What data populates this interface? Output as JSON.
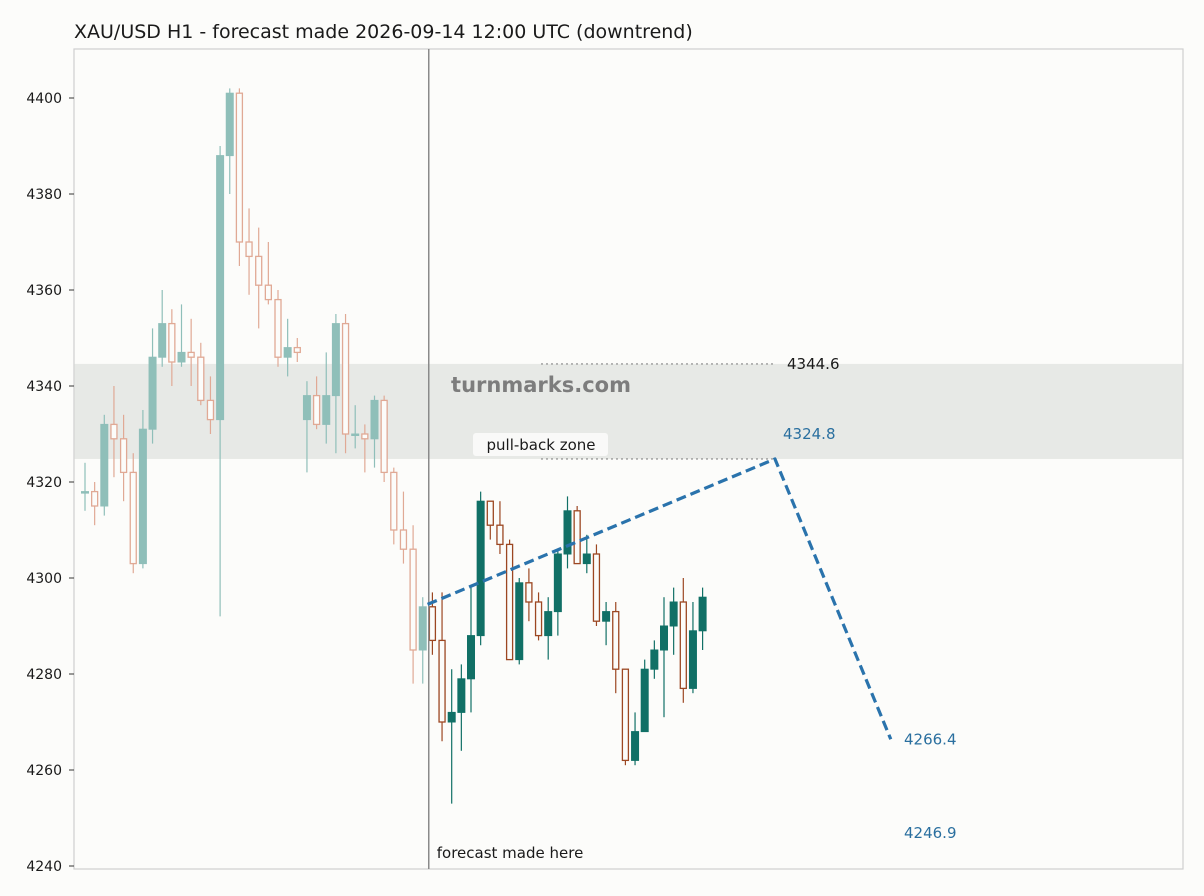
{
  "chart_data": {
    "type": "candlestick",
    "title": "XAU/USD H1 - forecast made 2026-09-14 12:00 UTC (downtrend)",
    "xlabel": "",
    "ylabel": "",
    "ylim": [
      4240,
      4410
    ],
    "y_ticks": [
      "4240",
      "4260",
      "4280",
      "4300",
      "4320",
      "4340",
      "4360",
      "4380",
      "4400"
    ],
    "grid": false,
    "history_candles": [
      {
        "o": 4318,
        "h": 4324,
        "l": 4314,
        "c": 4318
      },
      {
        "o": 4318,
        "h": 4320,
        "l": 4311,
        "c": 4315
      },
      {
        "o": 4315,
        "h": 4334,
        "l": 4313,
        "c": 4332
      },
      {
        "o": 4332,
        "h": 4340,
        "l": 4321,
        "c": 4329
      },
      {
        "o": 4329,
        "h": 4334,
        "l": 4316,
        "c": 4322
      },
      {
        "o": 4322,
        "h": 4326,
        "l": 4301,
        "c": 4303
      },
      {
        "o": 4303,
        "h": 4335,
        "l": 4302,
        "c": 4331
      },
      {
        "o": 4331,
        "h": 4352,
        "l": 4328,
        "c": 4346
      },
      {
        "o": 4346,
        "h": 4360,
        "l": 4344,
        "c": 4353
      },
      {
        "o": 4353,
        "h": 4356,
        "l": 4340,
        "c": 4345
      },
      {
        "o": 4345,
        "h": 4357,
        "l": 4344,
        "c": 4347
      },
      {
        "o": 4347,
        "h": 4354,
        "l": 4340,
        "c": 4346
      },
      {
        "o": 4346,
        "h": 4349,
        "l": 4336,
        "c": 4337
      },
      {
        "o": 4337,
        "h": 4342,
        "l": 4330,
        "c": 4333
      },
      {
        "o": 4333,
        "h": 4390,
        "l": 4292,
        "c": 4388
      },
      {
        "o": 4388,
        "h": 4402,
        "l": 4380,
        "c": 4401
      },
      {
        "o": 4401,
        "h": 4402,
        "l": 4365,
        "c": 4370
      },
      {
        "o": 4370,
        "h": 4377,
        "l": 4359,
        "c": 4367
      },
      {
        "o": 4367,
        "h": 4373,
        "l": 4352,
        "c": 4361
      },
      {
        "o": 4361,
        "h": 4370,
        "l": 4357,
        "c": 4358
      },
      {
        "o": 4358,
        "h": 4360,
        "l": 4344,
        "c": 4346
      },
      {
        "o": 4346,
        "h": 4354,
        "l": 4342,
        "c": 4348
      },
      {
        "o": 4348,
        "h": 4350,
        "l": 4345,
        "c": 4347
      },
      {
        "o": 4333,
        "h": 4341,
        "l": 4322,
        "c": 4338
      },
      {
        "o": 4338,
        "h": 4342,
        "l": 4331,
        "c": 4332
      },
      {
        "o": 4332,
        "h": 4347,
        "l": 4328,
        "c": 4338
      },
      {
        "o": 4338,
        "h": 4355,
        "l": 4326,
        "c": 4353
      },
      {
        "o": 4353,
        "h": 4355,
        "l": 4326,
        "c": 4330
      },
      {
        "o": 4330,
        "h": 4336,
        "l": 4327,
        "c": 4330
      },
      {
        "o": 4330,
        "h": 4332,
        "l": 4322,
        "c": 4329
      },
      {
        "o": 4329,
        "h": 4338,
        "l": 4323,
        "c": 4337
      },
      {
        "o": 4337,
        "h": 4338,
        "l": 4320,
        "c": 4322
      },
      {
        "o": 4322,
        "h": 4323,
        "l": 4307,
        "c": 4310
      },
      {
        "o": 4310,
        "h": 4318,
        "l": 4303,
        "c": 4306
      },
      {
        "o": 4306,
        "h": 4311,
        "l": 4278,
        "c": 4285
      },
      {
        "o": 4285,
        "h": 4296,
        "l": 4278,
        "c": 4294
      }
    ],
    "after_forecast_candles": [
      {
        "o": 4294,
        "h": 4297,
        "l": 4284,
        "c": 4287
      },
      {
        "o": 4287,
        "h": 4297,
        "l": 4266,
        "c": 4270
      },
      {
        "o": 4270,
        "h": 4281,
        "l": 4253,
        "c": 4272
      },
      {
        "o": 4272,
        "h": 4282,
        "l": 4264,
        "c": 4279
      },
      {
        "o": 4279,
        "h": 4298,
        "l": 4272,
        "c": 4288
      },
      {
        "o": 4288,
        "h": 4318,
        "l": 4286,
        "c": 4316
      },
      {
        "o": 4316,
        "h": 4316,
        "l": 4308,
        "c": 4311
      },
      {
        "o": 4311,
        "h": 4316,
        "l": 4305,
        "c": 4307
      },
      {
        "o": 4307,
        "h": 4308,
        "l": 4283,
        "c": 4283
      },
      {
        "o": 4283,
        "h": 4300,
        "l": 4282,
        "c": 4299
      },
      {
        "o": 4299,
        "h": 4302,
        "l": 4291,
        "c": 4295
      },
      {
        "o": 4295,
        "h": 4297,
        "l": 4287,
        "c": 4288
      },
      {
        "o": 4288,
        "h": 4296,
        "l": 4283,
        "c": 4293
      },
      {
        "o": 4293,
        "h": 4306,
        "l": 4288,
        "c": 4305
      },
      {
        "o": 4305,
        "h": 4317,
        "l": 4302,
        "c": 4314
      },
      {
        "o": 4314,
        "h": 4315,
        "l": 4303,
        "c": 4303
      },
      {
        "o": 4303,
        "h": 4309,
        "l": 4301,
        "c": 4305
      },
      {
        "o": 4305,
        "h": 4307,
        "l": 4290,
        "c": 4291
      },
      {
        "o": 4291,
        "h": 4295,
        "l": 4286,
        "c": 4293
      },
      {
        "o": 4293,
        "h": 4295,
        "l": 4276,
        "c": 4281
      },
      {
        "o": 4281,
        "h": 4281,
        "l": 4261,
        "c": 4262
      },
      {
        "o": 4262,
        "h": 4272,
        "l": 4261,
        "c": 4268
      },
      {
        "o": 4268,
        "h": 4283,
        "l": 4268,
        "c": 4281
      },
      {
        "o": 4281,
        "h": 4287,
        "l": 4279,
        "c": 4285
      },
      {
        "o": 4285,
        "h": 4296,
        "l": 4271,
        "c": 4290
      },
      {
        "o": 4290,
        "h": 4298,
        "l": 4284,
        "c": 4295
      },
      {
        "o": 4295,
        "h": 4300,
        "l": 4274,
        "c": 4277
      },
      {
        "o": 4277,
        "h": 4295,
        "l": 4276,
        "c": 4289
      },
      {
        "o": 4289,
        "h": 4298,
        "l": 4285,
        "c": 4296
      }
    ],
    "forecast_path": [
      {
        "bar": 35.5,
        "y": 4294.5
      },
      {
        "bar": 71.5,
        "y": 4324.8
      },
      {
        "bar": 83.5,
        "y": 4266.4
      }
    ],
    "pullback_zone": {
      "low": 4324.8,
      "high": 4344.6,
      "label": "pull-back zone"
    },
    "levels": [
      {
        "label": "4344.6",
        "value": 4344.6,
        "color": "#1a1a1a"
      },
      {
        "label": "4324.8",
        "value": 4324.8,
        "color": "#2a6f9f"
      },
      {
        "label": "4266.4",
        "value": 4266.4,
        "color": "#2a6f9f"
      },
      {
        "label": "4246.9",
        "value": 4246.9,
        "color": "#2a6f9f"
      }
    ],
    "forecast_marker_label": "forecast made here",
    "watermark": "turnmarks.com",
    "colors": {
      "up": "#117066",
      "down": "#9c4722",
      "up_faded": "#8fbfb9",
      "down_faded": "#e0a995",
      "forecast_line": "#2a73ac",
      "zone": "#e7e9e6",
      "divider": "#8a8a8a"
    }
  }
}
